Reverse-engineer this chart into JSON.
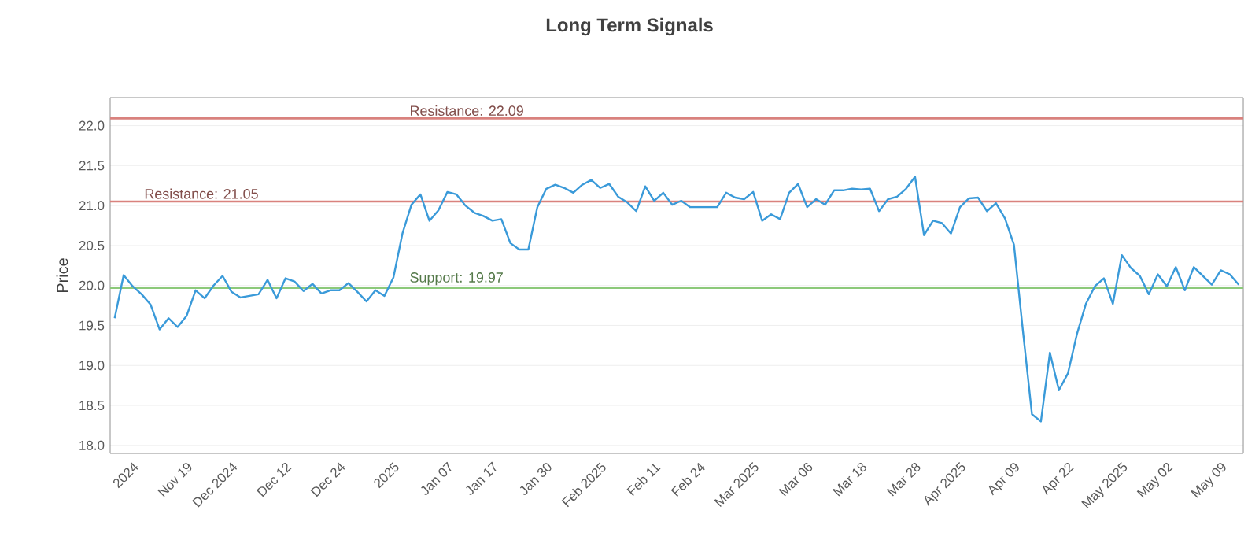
{
  "chart_data": {
    "type": "line",
    "title": "Long Term Signals",
    "ylabel": "Price",
    "categories": [
      null,
      null,
      "2024",
      null,
      null,
      null,
      null,
      null,
      "Nov 19",
      null,
      null,
      null,
      null,
      "Dec 2024",
      null,
      null,
      null,
      null,
      null,
      "Dec 12",
      null,
      null,
      null,
      null,
      null,
      "Dec 24",
      null,
      null,
      null,
      null,
      null,
      "2025",
      null,
      null,
      null,
      null,
      null,
      "Jan 07",
      null,
      null,
      null,
      null,
      "Jan 17",
      null,
      null,
      null,
      null,
      null,
      "Jan 30",
      null,
      null,
      null,
      null,
      null,
      "Feb 2025",
      null,
      null,
      null,
      null,
      null,
      "Feb 11",
      null,
      null,
      null,
      null,
      "Feb 24",
      null,
      null,
      null,
      null,
      null,
      "Mar 2025",
      null,
      null,
      null,
      null,
      null,
      "Mar 06",
      null,
      null,
      null,
      null,
      null,
      "Mar 18",
      null,
      null,
      null,
      null,
      null,
      "Mar 28",
      null,
      null,
      null,
      null,
      "Apr 2025",
      null,
      null,
      null,
      null,
      null,
      "Apr 09",
      null,
      null,
      null,
      null,
      null,
      "Apr 22",
      null,
      null,
      null,
      null,
      null,
      "May 2025",
      null,
      null,
      null,
      null,
      "May 02",
      null,
      null,
      null,
      null,
      null,
      "May 09",
      null,
      null
    ],
    "series": [
      {
        "color": "#3a9ad9",
        "values": [
          19.59,
          20.13,
          19.99,
          19.89,
          19.76,
          19.45,
          19.59,
          19.48,
          19.62,
          19.94,
          19.84,
          20.0,
          20.12,
          19.92,
          19.85,
          19.87,
          19.89,
          20.07,
          19.84,
          20.09,
          20.05,
          19.93,
          20.02,
          19.9,
          19.94,
          19.94,
          20.03,
          19.92,
          19.8,
          19.94,
          19.87,
          20.1,
          20.65,
          21.01,
          21.14,
          20.81,
          20.94,
          21.17,
          21.14,
          21.0,
          20.91,
          20.87,
          20.81,
          20.83,
          20.53,
          20.45,
          20.45,
          20.98,
          21.21,
          21.26,
          21.22,
          21.16,
          21.26,
          21.32,
          21.22,
          21.27,
          21.11,
          21.04,
          20.93,
          21.24,
          21.06,
          21.16,
          21.01,
          21.06,
          20.98,
          20.98,
          20.98,
          20.98,
          21.16,
          21.1,
          21.08,
          21.17,
          20.81,
          20.89,
          20.83,
          21.16,
          21.27,
          20.98,
          21.08,
          21.01,
          21.19,
          21.19,
          21.21,
          21.2,
          21.21,
          20.93,
          21.08,
          21.11,
          21.21,
          21.36,
          20.63,
          20.81,
          20.78,
          20.65,
          20.98,
          21.09,
          21.1,
          20.93,
          21.03,
          20.84,
          20.51,
          19.43,
          18.39,
          18.3,
          19.16,
          18.69,
          18.9,
          19.39,
          19.77,
          19.99,
          20.09,
          19.77,
          20.38,
          20.22,
          20.12,
          19.89,
          20.14,
          19.99,
          20.23,
          19.94,
          20.23,
          20.12,
          20.01,
          20.19,
          20.14,
          20.01
        ]
      }
    ],
    "ylim": [
      17.9,
      22.35
    ],
    "yticks": [
      {
        "value": 18,
        "label": "18.0"
      },
      {
        "value": 18.5,
        "label": "18.5"
      },
      {
        "value": 19,
        "label": "19.0"
      },
      {
        "value": 19.5,
        "label": "19.5"
      },
      {
        "value": 20,
        "label": "20.0"
      },
      {
        "value": 20.5,
        "label": "20.5"
      },
      {
        "value": 21,
        "label": "21.0"
      },
      {
        "value": 21.5,
        "label": "21.5"
      },
      {
        "value": 22,
        "label": "22.0"
      }
    ],
    "ref_lines": [
      {
        "axis": "y",
        "value": 22.09,
        "label": "Resistance: 22.09",
        "color": "#d9827e"
      },
      {
        "axis": "y",
        "value": 21.05,
        "label": "Resistance: 21.05",
        "color": "#d9827e"
      },
      {
        "axis": "y",
        "value": 19.97,
        "label": "Support: 19.97",
        "color": "#8cc97a"
      }
    ],
    "grid": "y",
    "marker": "none",
    "line_style": "solid"
  }
}
